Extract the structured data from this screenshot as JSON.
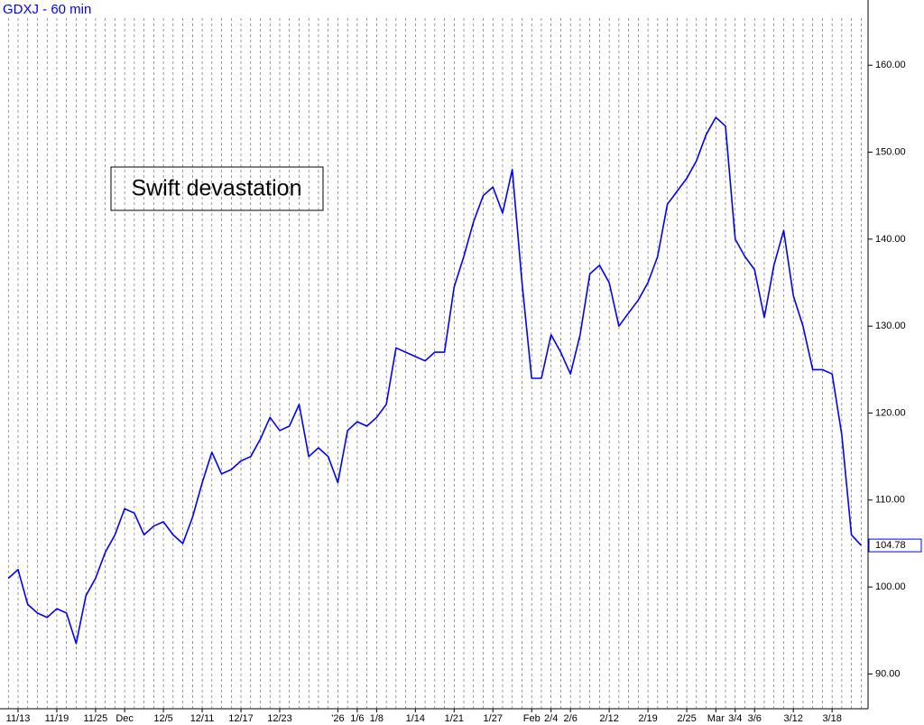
{
  "chart_data": {
    "type": "line",
    "title": "GDXJ - 60 min",
    "annotation": "Swift devastation",
    "categories": [
      null,
      "11/13",
      null,
      null,
      null,
      "11/19",
      null,
      null,
      null,
      "11/25",
      null,
      null,
      "Dec",
      null,
      null,
      null,
      "12/5",
      null,
      null,
      null,
      "12/11",
      null,
      null,
      null,
      "12/17",
      null,
      null,
      null,
      "12/23",
      null,
      null,
      null,
      null,
      null,
      "'26",
      null,
      "1/6",
      null,
      "1/8",
      null,
      null,
      null,
      "1/14",
      null,
      null,
      null,
      "1/21",
      null,
      null,
      null,
      "1/27",
      null,
      null,
      null,
      "Feb",
      null,
      "2/4",
      null,
      "2/6",
      null,
      null,
      null,
      "2/12",
      null,
      null,
      null,
      "2/19",
      null,
      null,
      null,
      "2/25",
      null,
      null,
      "Mar",
      null,
      "3/4",
      null,
      "3/6",
      null,
      null,
      null,
      "3/12",
      null,
      null,
      null,
      "3/18",
      null,
      null,
      null
    ],
    "values": [
      101,
      102,
      98,
      97,
      96.5,
      97.5,
      97,
      93.5,
      99,
      101,
      104,
      106,
      109,
      108.5,
      106,
      107,
      107.5,
      106,
      105,
      108,
      112,
      115.5,
      113,
      113.5,
      114.5,
      115,
      117,
      119.5,
      118,
      118.5,
      121,
      115,
      116,
      115,
      112,
      118,
      119,
      118.5,
      119.5,
      121,
      127.5,
      127,
      126.5,
      126,
      127,
      127,
      134.5,
      138,
      142,
      145,
      146,
      143,
      148,
      135,
      124,
      124,
      129,
      127,
      124.5,
      129,
      136,
      137,
      135,
      130,
      131.5,
      133,
      135,
      138,
      144,
      145.5,
      147,
      149,
      152,
      154,
      153,
      140,
      138,
      136.5,
      131,
      137,
      141,
      133.5,
      130,
      125,
      125,
      124.5,
      117.5,
      106,
      104.78
    ],
    "color": "#0000ff",
    "ylim": [
      86,
      167.5
    ],
    "yticks": [
      {
        "value": 90,
        "label": "90.00"
      },
      {
        "value": 100,
        "label": "100.00"
      },
      {
        "value": 110,
        "label": "110.00"
      },
      {
        "value": 120,
        "label": "120.00"
      },
      {
        "value": 130,
        "label": "130.00"
      },
      {
        "value": 140,
        "label": "140.00"
      },
      {
        "value": 150,
        "label": "150.00"
      },
      {
        "value": 160,
        "label": "160.00"
      }
    ],
    "grid": true
  }
}
